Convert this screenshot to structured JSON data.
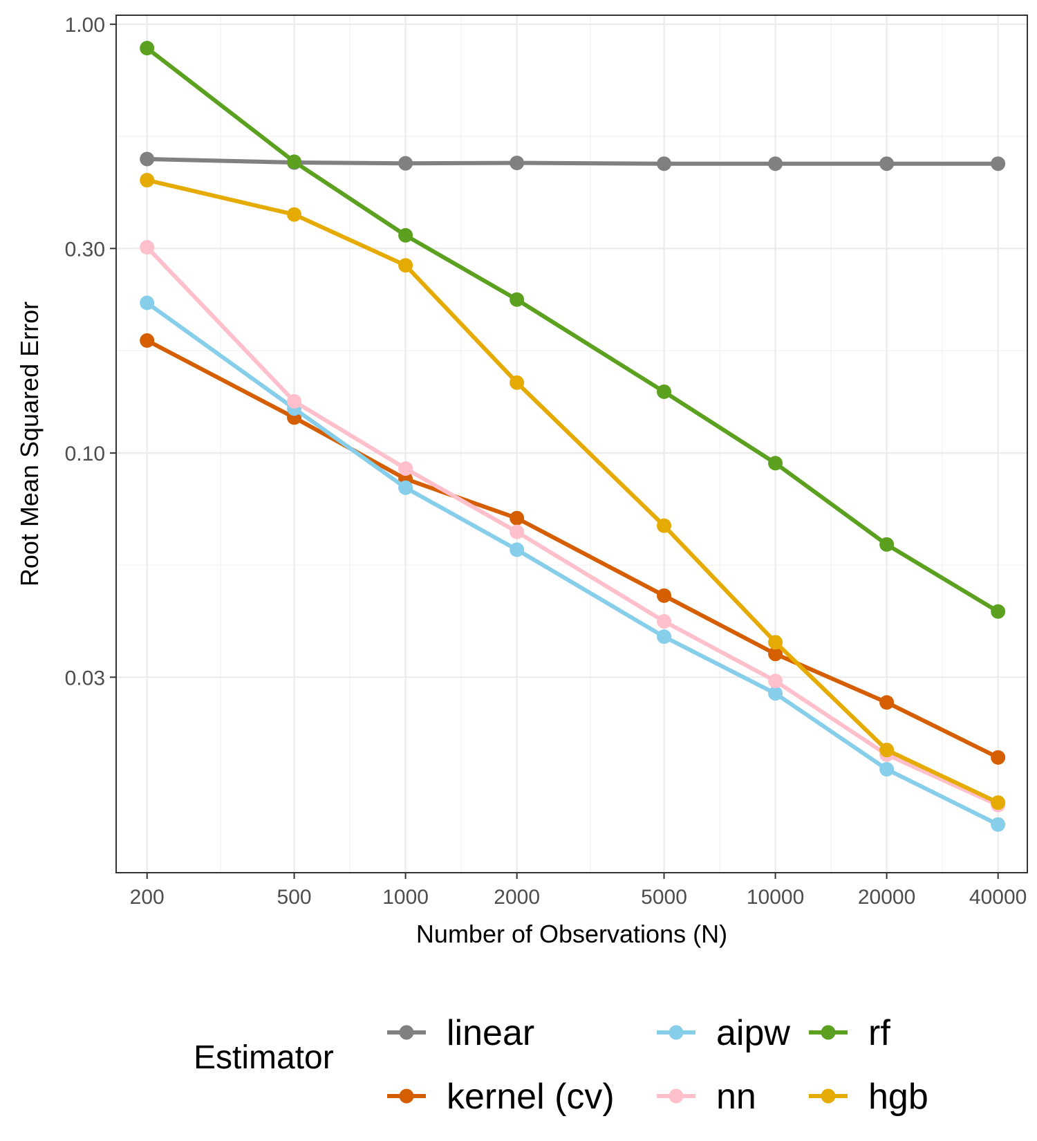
{
  "chart_data": {
    "type": "line",
    "title": "",
    "xlabel": "Number of Observations (N)",
    "ylabel": "Root Mean Squared Error",
    "x_scale": "log",
    "y_scale": "log",
    "x": [
      200,
      500,
      1000,
      2000,
      5000,
      10000,
      20000,
      40000
    ],
    "x_tick_labels": [
      "200",
      "500",
      "1000",
      "2000",
      "5000",
      "10000",
      "20000",
      "40000"
    ],
    "y_ticks": [
      0.03,
      0.1,
      0.3,
      1.0
    ],
    "y_tick_labels": [
      "0.03",
      "0.10",
      "0.30",
      "1.00"
    ],
    "xlim": [
      165,
      48000
    ],
    "ylim": [
      0.0105,
      1.05
    ],
    "grid": true,
    "legend_title": "Estimator",
    "legend_position": "bottom",
    "series": [
      {
        "name": "linear",
        "color": "#808080",
        "values": [
          0.485,
          0.476,
          0.474,
          0.475,
          0.473,
          0.473,
          0.473,
          0.473
        ]
      },
      {
        "name": "kernel (cv)",
        "color": "#D55E00",
        "values": [
          0.183,
          0.121,
          0.087,
          0.0705,
          0.0465,
          0.034,
          0.0262,
          0.0195
        ]
      },
      {
        "name": "aipw",
        "color": "#87CEEB",
        "values": [
          0.224,
          0.127,
          0.083,
          0.0595,
          0.0373,
          0.0275,
          0.0183,
          0.0136
        ]
      },
      {
        "name": "nn",
        "color": "#FFC0CB",
        "values": [
          0.302,
          0.132,
          0.092,
          0.0655,
          0.0405,
          0.0294,
          0.0198,
          0.0151
        ]
      },
      {
        "name": "rf",
        "color": "#5BA11F",
        "values": [
          0.88,
          0.478,
          0.322,
          0.228,
          0.139,
          0.0947,
          0.0612,
          0.0427
        ]
      },
      {
        "name": "hgb",
        "color": "#E6AB02",
        "values": [
          0.433,
          0.36,
          0.274,
          0.146,
          0.0677,
          0.0362,
          0.0203,
          0.0153
        ]
      }
    ]
  }
}
